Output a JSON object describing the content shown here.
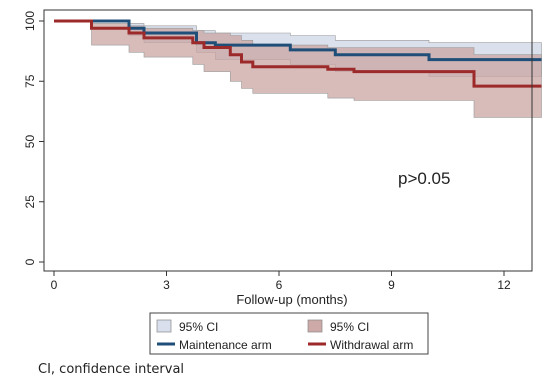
{
  "chart_data": {
    "type": "line",
    "xlabel": "Follow-up (months)",
    "ylabel": "",
    "xlim": [
      0,
      13
    ],
    "ylim": [
      0,
      100
    ],
    "x_ticks": [
      0,
      3,
      6,
      9,
      12
    ],
    "y_ticks": [
      0,
      25,
      50,
      75,
      100
    ],
    "grid": false,
    "annotation": "p>0.05",
    "legend_position": "bottom",
    "series": [
      {
        "name": "Maintenance arm",
        "color": "#1f4e79",
        "steps": [
          [
            0,
            100
          ],
          [
            1.1,
            100
          ],
          [
            2.0,
            97
          ],
          [
            2.4,
            95
          ],
          [
            3.8,
            91
          ],
          [
            4.3,
            90
          ],
          [
            6.3,
            88
          ],
          [
            7.5,
            86
          ],
          [
            8.2,
            86
          ],
          [
            10.0,
            84
          ],
          [
            13.0,
            84
          ]
        ],
        "ci_upper": [
          [
            0,
            100
          ],
          [
            1.1,
            100
          ],
          [
            2.0,
            99
          ],
          [
            2.4,
            98
          ],
          [
            3.8,
            96
          ],
          [
            4.3,
            95
          ],
          [
            6.3,
            94
          ],
          [
            7.5,
            92
          ],
          [
            8.2,
            92
          ],
          [
            10.0,
            91
          ],
          [
            13.0,
            91
          ]
        ],
        "ci_lower": [
          [
            0,
            100
          ],
          [
            1.1,
            100
          ],
          [
            2.0,
            94
          ],
          [
            2.4,
            91
          ],
          [
            3.8,
            87
          ],
          [
            4.3,
            84
          ],
          [
            6.3,
            82
          ],
          [
            7.5,
            79
          ],
          [
            8.2,
            79
          ],
          [
            10.0,
            77
          ],
          [
            13.0,
            77
          ]
        ]
      },
      {
        "name": "Withdrawal arm",
        "color": "#9c2a2a",
        "steps": [
          [
            0,
            100
          ],
          [
            1.0,
            97
          ],
          [
            2.0,
            95
          ],
          [
            2.4,
            93
          ],
          [
            3.7,
            91
          ],
          [
            4.0,
            89
          ],
          [
            4.7,
            86
          ],
          [
            5.0,
            83
          ],
          [
            5.3,
            81
          ],
          [
            7.3,
            80
          ],
          [
            8.0,
            79
          ],
          [
            11.2,
            73
          ],
          [
            13.0,
            73
          ]
        ],
        "ci_upper": [
          [
            0,
            100
          ],
          [
            1.0,
            99
          ],
          [
            2.0,
            98
          ],
          [
            2.4,
            97
          ],
          [
            3.7,
            96
          ],
          [
            4.0,
            95
          ],
          [
            4.7,
            94
          ],
          [
            5.0,
            92
          ],
          [
            5.3,
            90
          ],
          [
            7.3,
            89
          ],
          [
            8.0,
            89
          ],
          [
            11.2,
            86
          ],
          [
            13.0,
            86
          ]
        ],
        "ci_lower": [
          [
            0,
            100
          ],
          [
            1.0,
            90
          ],
          [
            2.0,
            87
          ],
          [
            2.4,
            85
          ],
          [
            3.7,
            82
          ],
          [
            4.0,
            79
          ],
          [
            4.7,
            75
          ],
          [
            5.0,
            72
          ],
          [
            5.3,
            70
          ],
          [
            7.3,
            68
          ],
          [
            8.0,
            67
          ],
          [
            11.2,
            60
          ],
          [
            13.0,
            60
          ]
        ]
      }
    ],
    "legend": [
      {
        "label": "95% CI",
        "kind": "band",
        "color": "#d9dfec"
      },
      {
        "label": "95% CI",
        "kind": "band",
        "color": "#cda9a8"
      },
      {
        "label": "Maintenance arm",
        "kind": "line",
        "color": "#1f4e79"
      },
      {
        "label": "Withdrawal arm",
        "kind": "line",
        "color": "#9c2a2a"
      }
    ],
    "band_colors": [
      "#d4dbe9",
      "#c9a5a3"
    ]
  },
  "footnote": "CI, confidence interval"
}
